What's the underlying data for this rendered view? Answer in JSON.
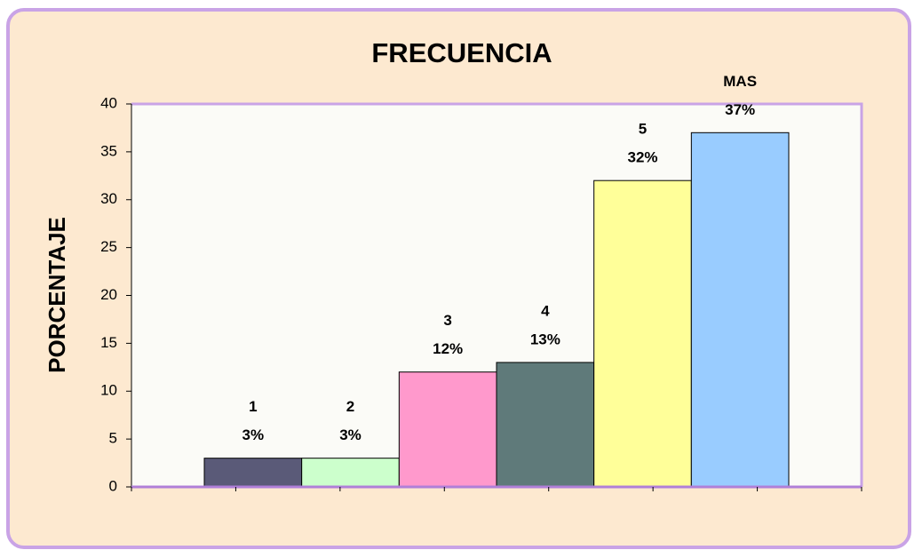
{
  "chart_data": {
    "type": "bar",
    "title": "FRECUENCIA",
    "y_label": "PORCENTAJE",
    "categories": [
      "1",
      "2",
      "3",
      "4",
      "5",
      "MAS"
    ],
    "values": [
      3,
      3,
      12,
      13,
      32,
      37
    ],
    "value_labels": [
      "3%",
      "3%",
      "12%",
      "13%",
      "32%",
      "37%"
    ],
    "colors": [
      "#5a5a78",
      "#ccffcc",
      "#ff99cc",
      "#5f7a7a",
      "#ffff99",
      "#99ccff"
    ],
    "ylim": [
      0,
      40
    ],
    "yticks": [
      0,
      5,
      10,
      15,
      20,
      25,
      30,
      35,
      40
    ],
    "grid": false
  }
}
